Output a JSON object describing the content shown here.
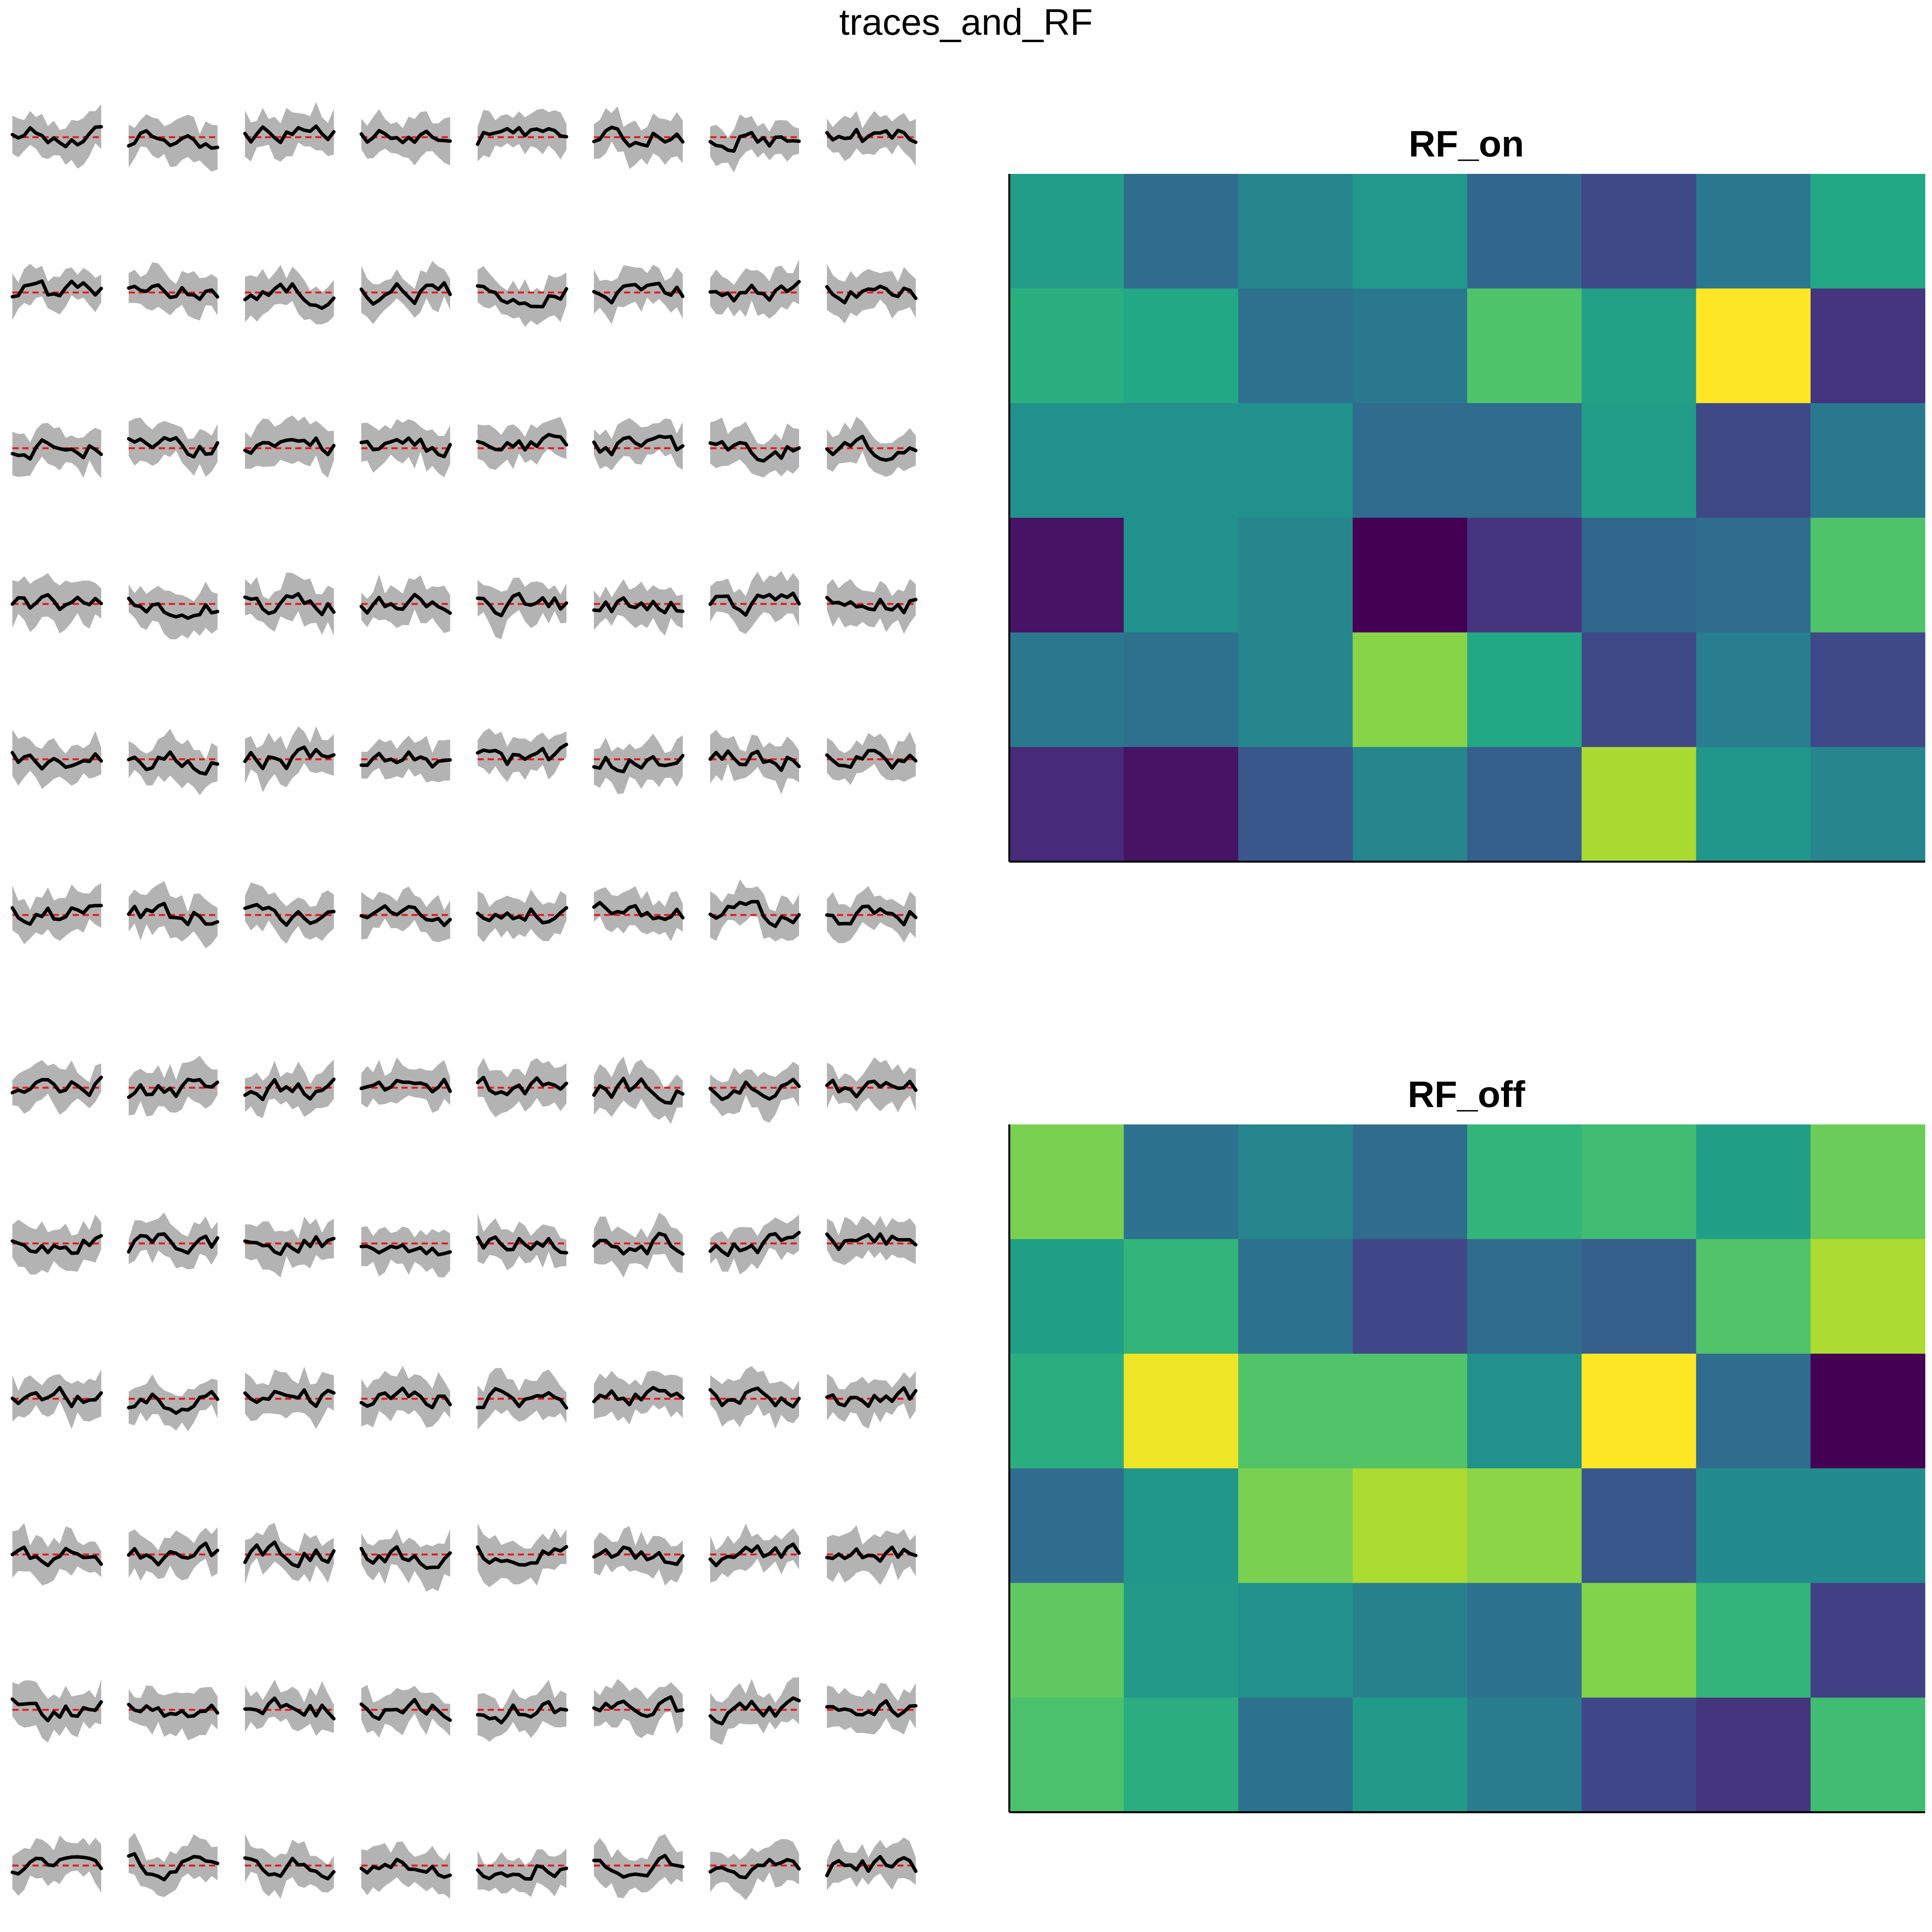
{
  "figure": {
    "title": "traces_and_RF"
  },
  "chart_data": [
    {
      "type": "line",
      "name": "traces",
      "grid_rows": 12,
      "grid_cols": 8,
      "grid": false,
      "axes_visible": false,
      "baseline": 0,
      "trace_color": "#000000",
      "band_color": "#b3b3b3",
      "baseline_color": "#e41a1c",
      "points_per_trace": 16
    },
    {
      "type": "heatmap",
      "title": "RF_on",
      "rows": 6,
      "cols": 8,
      "colormap": "viridis",
      "values": [
        [
          0.55,
          0.35,
          0.45,
          0.53,
          0.33,
          0.22,
          0.4,
          0.6
        ],
        [
          0.63,
          0.6,
          0.37,
          0.4,
          0.72,
          0.57,
          1.0,
          0.15
        ],
        [
          0.5,
          0.5,
          0.5,
          0.35,
          0.35,
          0.55,
          0.22,
          0.4
        ],
        [
          0.05,
          0.5,
          0.45,
          0.0,
          0.15,
          0.33,
          0.35,
          0.72
        ],
        [
          0.4,
          0.37,
          0.45,
          0.82,
          0.6,
          0.22,
          0.42,
          0.22
        ],
        [
          0.12,
          0.05,
          0.27,
          0.45,
          0.3,
          0.87,
          0.52,
          0.45
        ]
      ]
    },
    {
      "type": "heatmap",
      "title": "RF_off",
      "rows": 6,
      "cols": 8,
      "colormap": "viridis",
      "values": [
        [
          0.64,
          0.3,
          0.36,
          0.28,
          0.52,
          0.55,
          0.45,
          0.62
        ],
        [
          0.45,
          0.52,
          0.3,
          0.17,
          0.28,
          0.24,
          0.58,
          0.7
        ],
        [
          0.5,
          0.78,
          0.58,
          0.58,
          0.4,
          0.8,
          0.28,
          0.0
        ],
        [
          0.28,
          0.42,
          0.64,
          0.7,
          0.66,
          0.22,
          0.38,
          0.38
        ],
        [
          0.6,
          0.43,
          0.4,
          0.35,
          0.3,
          0.65,
          0.52,
          0.15
        ],
        [
          0.57,
          0.5,
          0.3,
          0.43,
          0.33,
          0.17,
          0.12,
          0.55
        ]
      ]
    }
  ]
}
